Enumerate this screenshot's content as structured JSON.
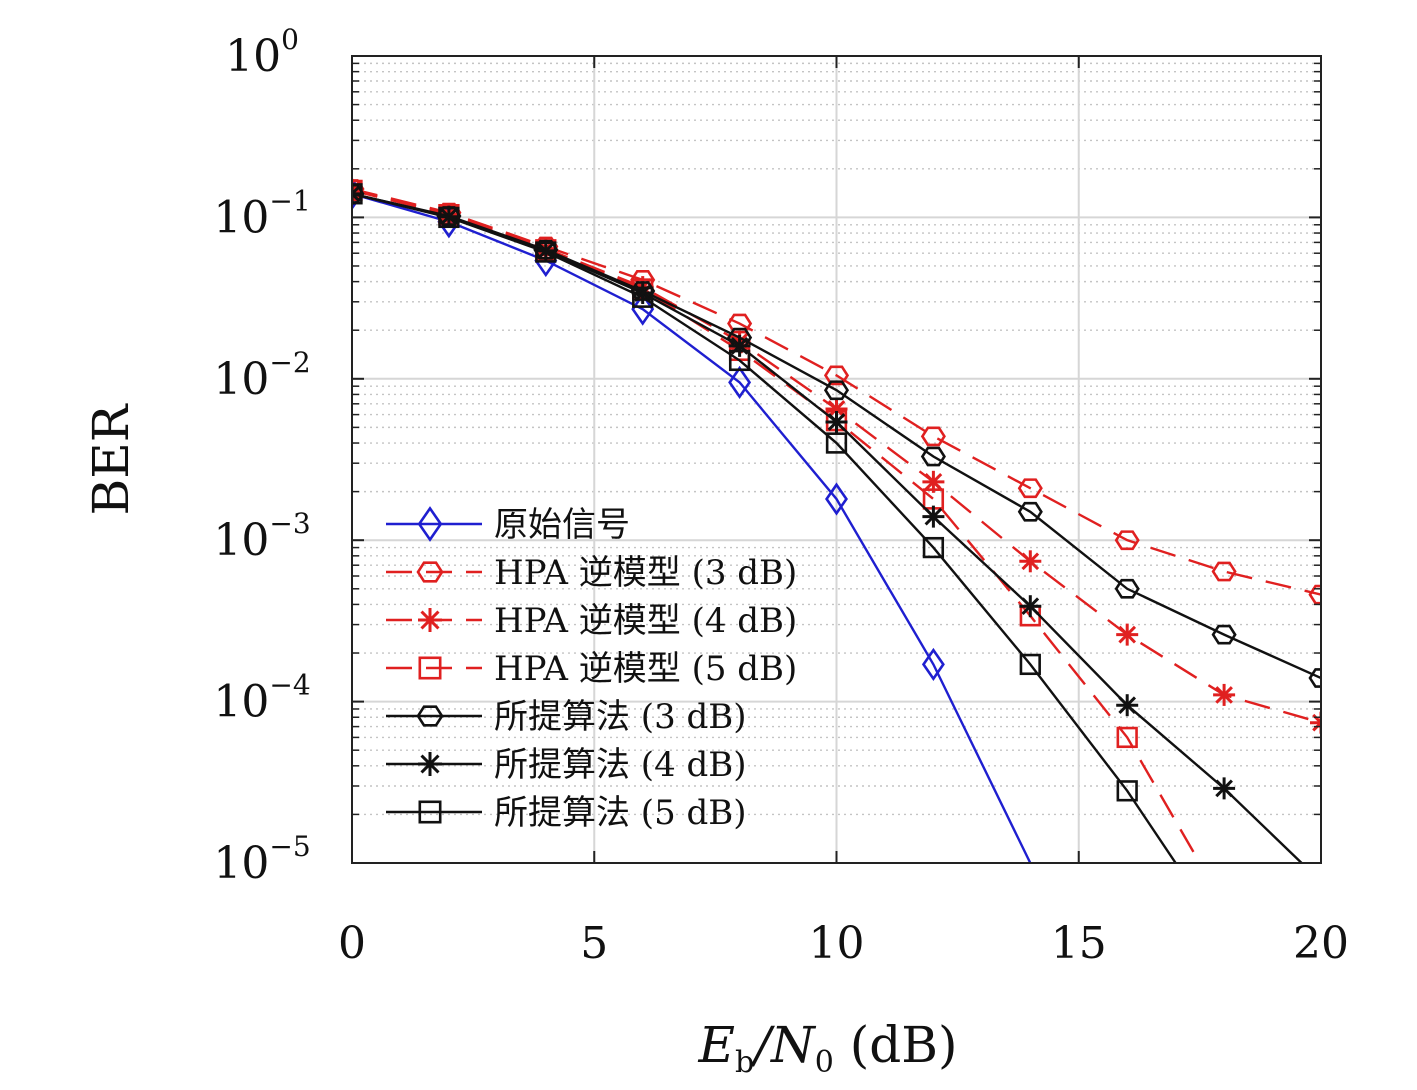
{
  "chart_data": {
    "type": "line",
    "title": "",
    "xlabel": {
      "main": "E",
      "sub1": "b",
      "mid": "/N",
      "sub2": "0",
      "tail": " (dB)"
    },
    "ylabel": "BER",
    "x_scale": "linear",
    "y_scale": "log",
    "xlim": [
      0,
      20
    ],
    "ylim": [
      1e-05,
      1
    ],
    "xticks": [
      {
        "value": 0,
        "label": "0"
      },
      {
        "value": 5,
        "label": "5"
      },
      {
        "value": 10,
        "label": "10"
      },
      {
        "value": 15,
        "label": "15"
      },
      {
        "value": 20,
        "label": "20"
      }
    ],
    "yticks": [
      {
        "value": 1,
        "base": "10",
        "exp": "0"
      },
      {
        "value": 0.1,
        "base": "10",
        "exp": "−1"
      },
      {
        "value": 0.01,
        "base": "10",
        "exp": "−2"
      },
      {
        "value": 0.001,
        "base": "10",
        "exp": "−3"
      },
      {
        "value": 0.0001,
        "base": "10",
        "exp": "−4"
      },
      {
        "value": 1e-05,
        "base": "10",
        "exp": "−5"
      }
    ],
    "grid": true,
    "minor_grid": true,
    "legend_position": "lower-left",
    "series": [
      {
        "name": "原始信号",
        "color": "#1f1fd0",
        "marker": "diamond",
        "dash": "solid",
        "x": [
          0,
          2,
          4,
          6,
          8,
          10,
          12,
          14
        ],
        "y": [
          0.14,
          0.094,
          0.054,
          0.027,
          0.0095,
          0.0018,
          0.00017,
          1e-05
        ]
      },
      {
        "name": "HPA 逆模型 (3 dB)",
        "color": "#e02020",
        "marker": "hexagon",
        "dash": "dashed",
        "x": [
          0,
          2,
          4,
          6,
          8,
          10,
          12,
          14,
          16,
          18,
          20
        ],
        "y": [
          0.15,
          0.107,
          0.066,
          0.041,
          0.022,
          0.0105,
          0.0044,
          0.0021,
          0.001,
          0.00064,
          0.00046
        ]
      },
      {
        "name": "HPA 逆模型 (4 dB)",
        "color": "#e02020",
        "marker": "asterisk",
        "dash": "dashed",
        "x": [
          0,
          2,
          4,
          6,
          8,
          10,
          12,
          14,
          16,
          18,
          20
        ],
        "y": [
          0.148,
          0.105,
          0.064,
          0.037,
          0.017,
          0.0065,
          0.0023,
          0.00074,
          0.00026,
          0.00011,
          7.4e-05
        ]
      },
      {
        "name": "HPA 逆模型 (5 dB)",
        "color": "#e02020",
        "marker": "square",
        "dash": "dashed",
        "x": [
          0,
          2,
          4,
          6,
          8,
          10,
          12,
          14,
          16,
          17.5
        ],
        "y": [
          0.147,
          0.104,
          0.063,
          0.036,
          0.015,
          0.0055,
          0.0018,
          0.00034,
          6e-05,
          1e-05
        ]
      },
      {
        "name": "所提算法 (3 dB)",
        "color": "#111111",
        "marker": "hexagon",
        "dash": "solid",
        "x": [
          0,
          2,
          4,
          6,
          8,
          10,
          12,
          14,
          16,
          18,
          20
        ],
        "y": [
          0.14,
          0.102,
          0.063,
          0.035,
          0.018,
          0.0085,
          0.0033,
          0.0015,
          0.0005,
          0.00026,
          0.00014
        ]
      },
      {
        "name": "所提算法 (4 dB)",
        "color": "#111111",
        "marker": "asterisk",
        "dash": "solid",
        "x": [
          0,
          2,
          4,
          6,
          8,
          10,
          12,
          14,
          16,
          18,
          19.6
        ],
        "y": [
          0.14,
          0.101,
          0.062,
          0.034,
          0.016,
          0.0054,
          0.0014,
          0.00039,
          9.5e-05,
          2.9e-05,
          1e-05
        ]
      },
      {
        "name": "所提算法 (5 dB)",
        "color": "#111111",
        "marker": "square",
        "dash": "solid",
        "x": [
          0,
          2,
          4,
          6,
          8,
          10,
          12,
          14,
          16,
          17
        ],
        "y": [
          0.14,
          0.1,
          0.061,
          0.032,
          0.013,
          0.004,
          0.0009,
          0.00017,
          2.8e-05,
          1e-05
        ]
      }
    ]
  }
}
